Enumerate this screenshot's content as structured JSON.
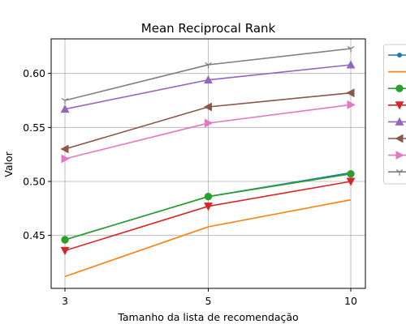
{
  "chart_data": {
    "type": "line",
    "title": "Mean Reciprocal Rank",
    "xlabel": "Tamanho da lista de recomendação",
    "ylabel": "Valor",
    "categories": [
      "3",
      "5",
      "10"
    ],
    "y_ticks": [
      "0.45",
      "0.50",
      "0.55",
      "0.60"
    ],
    "ylim": [
      0.401,
      0.632
    ],
    "grid": true,
    "legend_placement": "upper-right (outside, clipped)",
    "series": [
      {
        "values": [
          0.446,
          0.486,
          0.508
        ],
        "color": "#1f77b4",
        "marker": "point"
      },
      {
        "values": [
          0.412,
          0.458,
          0.483
        ],
        "color": "#ff7f0e",
        "marker": "none"
      },
      {
        "values": [
          0.446,
          0.486,
          0.507
        ],
        "color": "#2ca02c",
        "marker": "circle"
      },
      {
        "values": [
          0.436,
          0.477,
          0.5
        ],
        "color": "#d62728",
        "marker": "triangle-down"
      },
      {
        "values": [
          0.567,
          0.594,
          0.608
        ],
        "color": "#9467bd",
        "marker": "triangle-up"
      },
      {
        "values": [
          0.53,
          0.569,
          0.582
        ],
        "color": "#8c564b",
        "marker": "triangle-left"
      },
      {
        "values": [
          0.521,
          0.554,
          0.571
        ],
        "color": "#e377c2",
        "marker": "triangle-right"
      },
      {
        "values": [
          0.575,
          0.608,
          0.623
        ],
        "color": "#7f7f7f",
        "marker": "tri-down"
      }
    ]
  }
}
